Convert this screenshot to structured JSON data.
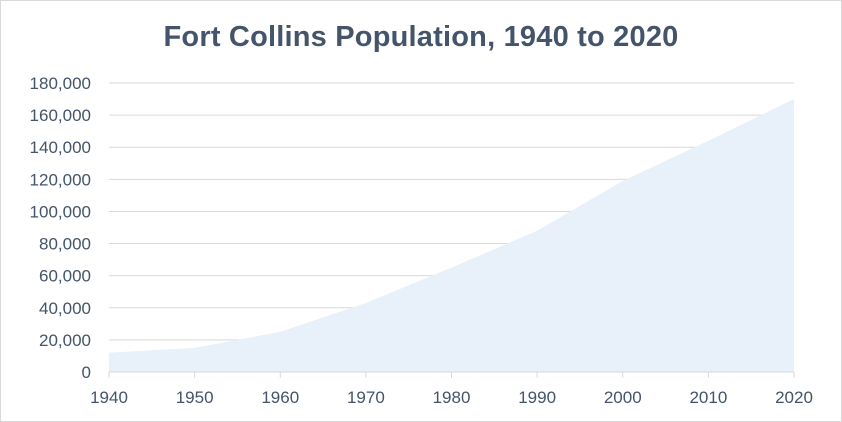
{
  "chart_data": {
    "type": "area",
    "title": "Fort Collins Population, 1940 to 2020",
    "xlabel": "",
    "ylabel": "",
    "x": [
      1940,
      1950,
      1960,
      1970,
      1980,
      1990,
      2000,
      2010,
      2020
    ],
    "x_tick_labels": [
      "1940",
      "1950",
      "1960",
      "1970",
      "1980",
      "1990",
      "2000",
      "2010",
      "2020"
    ],
    "series": [
      {
        "values": [
          12000,
          15000,
          25000,
          43000,
          65000,
          88000,
          119000,
          144000,
          170000
        ]
      }
    ],
    "ylim": [
      0,
      180000
    ],
    "y_ticks": [
      0,
      20000,
      40000,
      60000,
      80000,
      100000,
      120000,
      140000,
      160000,
      180000
    ],
    "y_tick_labels": [
      "0",
      "20,000",
      "40,000",
      "60,000",
      "80,000",
      "100,000",
      "120,000",
      "140,000",
      "160,000",
      "180,000"
    ],
    "grid": true,
    "legend": "none",
    "colors": {
      "fill": "#e8f0fa",
      "grid": "#d9d9d9",
      "text": "#44546a"
    }
  }
}
